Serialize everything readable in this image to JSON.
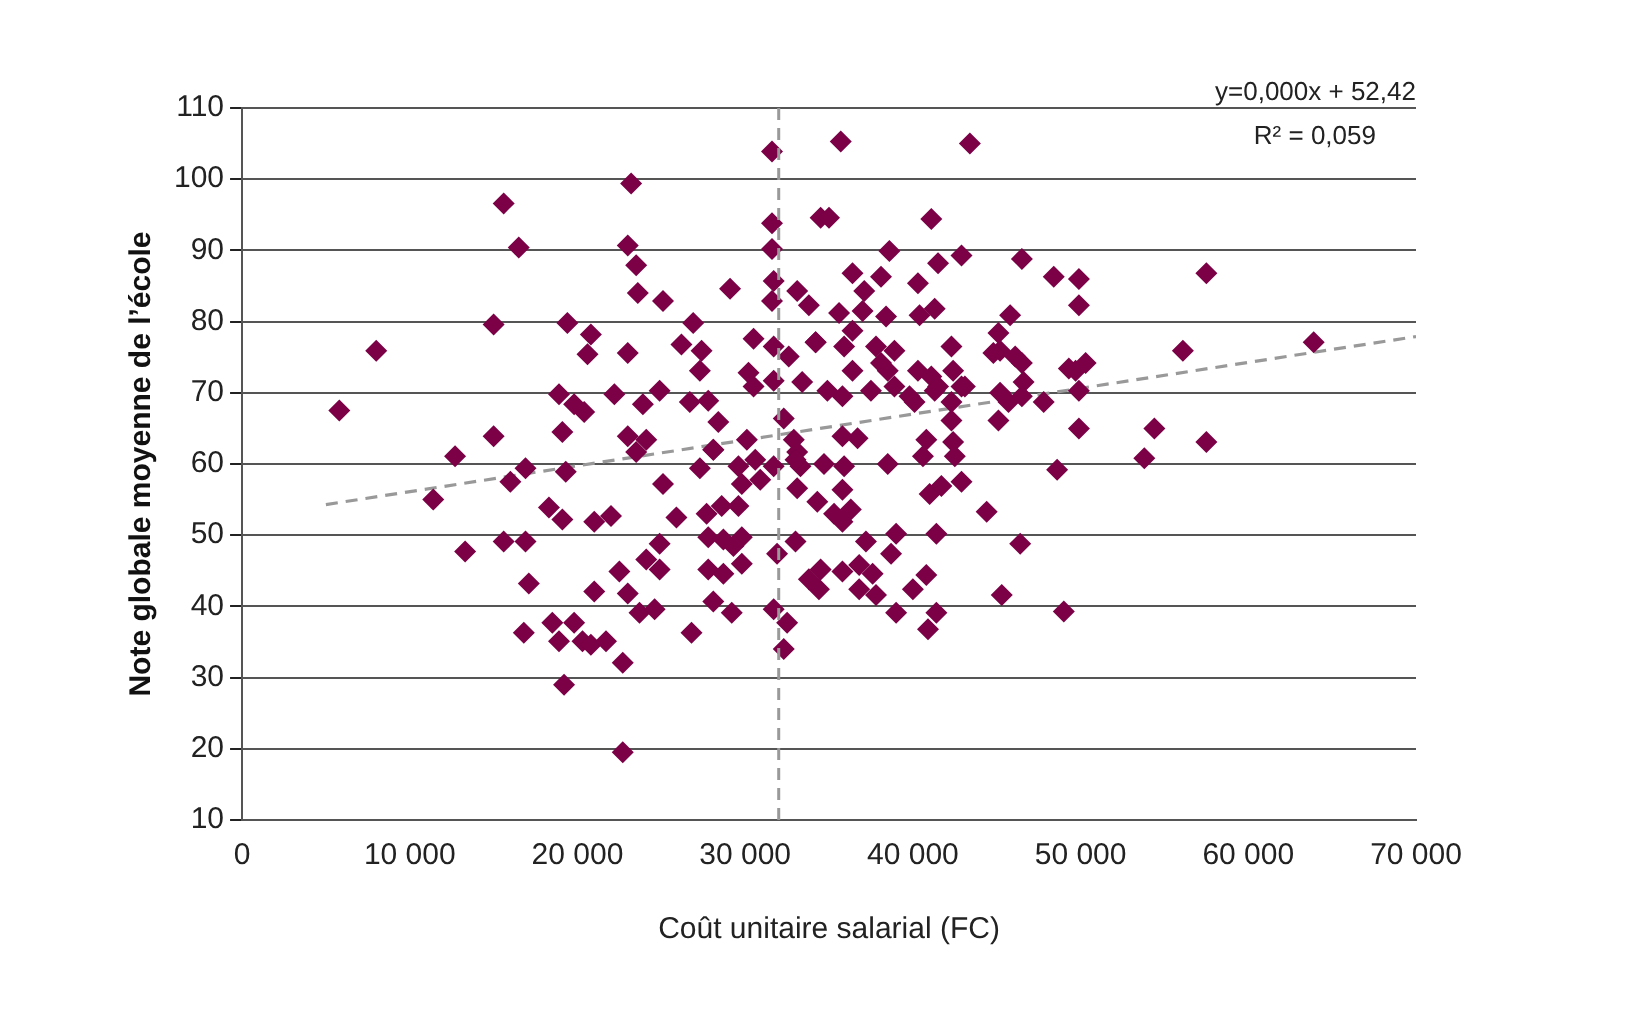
{
  "chart_data": {
    "type": "scatter",
    "xlabel": "Coût unitaire salarial (FC)",
    "ylabel": "Note globale moyenne de l’école",
    "annotations": [
      "y=0,000x + 52,42",
      "R² = 0,059"
    ],
    "xlim": [
      0,
      70000
    ],
    "ylim": [
      10,
      110
    ],
    "xticks": [
      0,
      {
        "value": 10000,
        "label": "10 000"
      },
      {
        "value": 20000,
        "label": "20 000"
      },
      {
        "value": 30000,
        "label": "30 000"
      },
      {
        "value": 40000,
        "label": "40 000"
      },
      {
        "value": 50000,
        "label": "50 000"
      },
      {
        "value": 60000,
        "label": "60 000"
      },
      {
        "value": 70000,
        "label": "70 000"
      }
    ],
    "yticks": [
      10,
      20,
      30,
      40,
      50,
      60,
      70,
      80,
      90,
      100,
      110
    ],
    "grid": "y",
    "legend": false,
    "ref_lines": [
      {
        "axis": "x",
        "value": 32000,
        "color": "#999999",
        "line_style": "dashed"
      }
    ],
    "series": [
      {
        "type": "scatter",
        "color": "#7b0046",
        "marker": "diamond",
        "x": [
          31600,
          23200,
          15600,
          16500,
          23000,
          23500,
          31600,
          31600,
          23600,
          25100,
          29100,
          31700,
          31600,
          33100,
          33800,
          34500,
          15000,
          19400,
          20800,
          20600,
          23000,
          26900,
          26200,
          27400,
          27300,
          30500,
          31700,
          32600,
          34200,
          30200,
          30500,
          31700,
          33400,
          8000,
          5800,
          18900,
          19800,
          20400,
          22200,
          23900,
          24900,
          26700,
          27800,
          28400,
          32300,
          15000,
          19100,
          12700,
          23000,
          24100,
          23500,
          28100,
          30100,
          32900,
          33100,
          16900,
          19300,
          16000,
          11400,
          18300,
          19100,
          21000,
          22000,
          25100,
          25900,
          27300,
          28100,
          29600,
          30600,
          31700,
          33300,
          33100,
          30900,
          29800,
          27700,
          28600,
          29600,
          27800,
          28700,
          29800,
          29300,
          34300,
          13300,
          15600,
          16900,
          24900,
          24100,
          24900,
          22500,
          23000,
          21000,
          17100,
          27800,
          28700,
          29800,
          31900,
          33000,
          33800,
          34400,
          28100,
          29200,
          31700,
          32500,
          32300,
          23700,
          24600,
          26800,
          16800,
          18500,
          19800,
          18900,
          20300,
          20800,
          21700,
          22700,
          19200,
          22700,
          35700,
          43400,
          35000,
          41100,
          38600,
          42900,
          41500,
          46500,
          36400,
          38100,
          37100,
          40300,
          48400,
          49900,
          49900,
          57500,
          35600,
          37000,
          38400,
          40400,
          41300,
          45800,
          36400,
          34200,
          35900,
          37800,
          38900,
          38100,
          38500,
          36400,
          42300,
          40300,
          41100,
          42400,
          41500,
          42900,
          45100,
          45200,
          46100,
          46500,
          44800,
          49300,
          50300,
          49700,
          56100,
          63900,
          34900,
          35800,
          37500,
          38900,
          39800,
          40100,
          41300,
          42300,
          43100,
          45200,
          45700,
          46600,
          46500,
          47800,
          49900,
          45100,
          49900,
          54400,
          57500,
          53800,
          35800,
          36700,
          42300,
          42400,
          40800,
          40600,
          38500,
          33000,
          34700,
          35900,
          48600,
          42500,
          35800,
          35300,
          36300,
          35800,
          41000,
          41700,
          42900,
          44400,
          37200,
          39000,
          38700,
          41400,
          46400,
          34500,
          35800,
          36800,
          37600,
          36800,
          37800,
          40000,
          40800,
          39000,
          41400,
          40900,
          45300,
          49000
        ],
        "values": [
          103.9,
          99.4,
          96.6,
          90.4,
          90.7,
          87.9,
          93.8,
          90.2,
          84,
          82.9,
          84.6,
          85.7,
          82.9,
          84.3,
          82.3,
          94.6,
          79.6,
          79.8,
          78.2,
          75.4,
          75.6,
          79.8,
          76.8,
          75.9,
          73.1,
          77.6,
          76.5,
          75.1,
          77.1,
          72.8,
          70.9,
          71.7,
          71.5,
          75.9,
          67.5,
          69.8,
          68.4,
          67.3,
          69.8,
          68.4,
          70.3,
          68.7,
          68.9,
          65.9,
          66.4,
          63.9,
          64.5,
          61.1,
          63.9,
          63.4,
          61.7,
          62,
          63.4,
          63.4,
          61.7,
          59.4,
          58.9,
          57.5,
          55,
          53.9,
          52.2,
          51.9,
          52.7,
          57.2,
          52.5,
          59.4,
          62,
          59.7,
          60.6,
          59.7,
          59.7,
          56.6,
          57.8,
          57.2,
          53,
          54.1,
          54.1,
          49.7,
          49.4,
          49.7,
          48.5,
          54.7,
          47.7,
          49.1,
          49.1,
          48.8,
          46.6,
          45.2,
          44.9,
          41.8,
          42.1,
          43.2,
          45.2,
          44.6,
          46,
          47.4,
          49.1,
          43.8,
          42.4,
          40.7,
          39.1,
          39.6,
          37.7,
          34,
          39.1,
          39.6,
          36.3,
          36.3,
          37.7,
          37.7,
          35.1,
          35.1,
          34.6,
          35.1,
          32.1,
          29,
          19.5,
          105.3,
          105,
          94.6,
          94.4,
          89.9,
          89.3,
          88.2,
          88.8,
          86.8,
          86.3,
          84.3,
          85.4,
          86.3,
          86,
          82.3,
          86.8,
          81.2,
          81.5,
          80.7,
          80.9,
          81.8,
          80.9,
          78.7,
          77.1,
          76.5,
          76.5,
          75.9,
          74.2,
          73.1,
          73.1,
          76.5,
          73.1,
          72.3,
          73.1,
          70.9,
          70.9,
          78.4,
          75.9,
          75.1,
          74.2,
          75.6,
          73.4,
          74.2,
          73.1,
          75.9,
          77.1,
          70.3,
          69.5,
          70.3,
          70.9,
          69.5,
          68.7,
          70.3,
          68.7,
          70.9,
          70,
          68.7,
          71.5,
          69.5,
          68.7,
          70.3,
          66.1,
          65,
          65,
          63.1,
          60.8,
          63.9,
          63.6,
          66.1,
          63.1,
          63.4,
          61.1,
          60,
          60.6,
          60,
          59.7,
          59.2,
          61.1,
          56.4,
          53,
          53.6,
          51.9,
          55.8,
          56.9,
          57.5,
          53.3,
          49.1,
          50.2,
          47.4,
          50.2,
          48.8,
          45.2,
          44.9,
          45.8,
          44.6,
          42.4,
          41.6,
          42.4,
          44.4,
          39.1,
          39.1,
          36.8,
          41.6,
          39.3
        ]
      },
      {
        "type": "line",
        "color": "#999999",
        "marker": "none",
        "line_style": "dashed",
        "x": [
          5000,
          70000
        ],
        "values": [
          54.3,
          77.9
        ]
      }
    ]
  }
}
